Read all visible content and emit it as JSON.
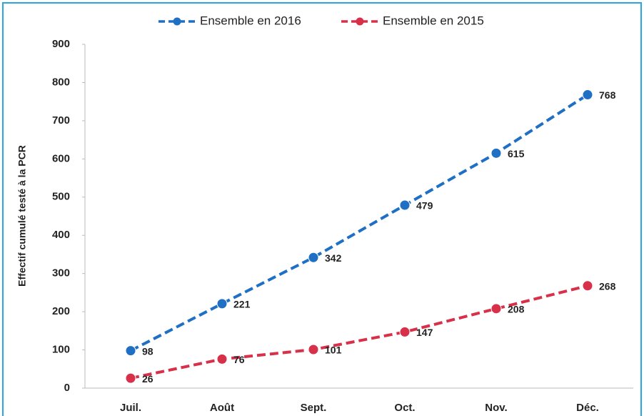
{
  "chart_data": {
    "type": "line",
    "y_label": "Effectif cumulé testé à la PCR",
    "categories": [
      "Juil.",
      "Août",
      "Sept.",
      "Oct.",
      "Nov.",
      "Déc."
    ],
    "series": [
      {
        "name": "Ensemble en 2016",
        "color": "#1f6fc5",
        "values": [
          98,
          221,
          342,
          479,
          615,
          768
        ]
      },
      {
        "name": "Ensemble en 2015",
        "color": "#d9304a",
        "values": [
          26,
          76,
          101,
          147,
          208,
          268
        ]
      }
    ],
    "ylim": [
      0,
      900
    ],
    "yticks": [
      0,
      100,
      200,
      300,
      400,
      500,
      600,
      700,
      800,
      900
    ],
    "legend": "top",
    "grid": false
  }
}
